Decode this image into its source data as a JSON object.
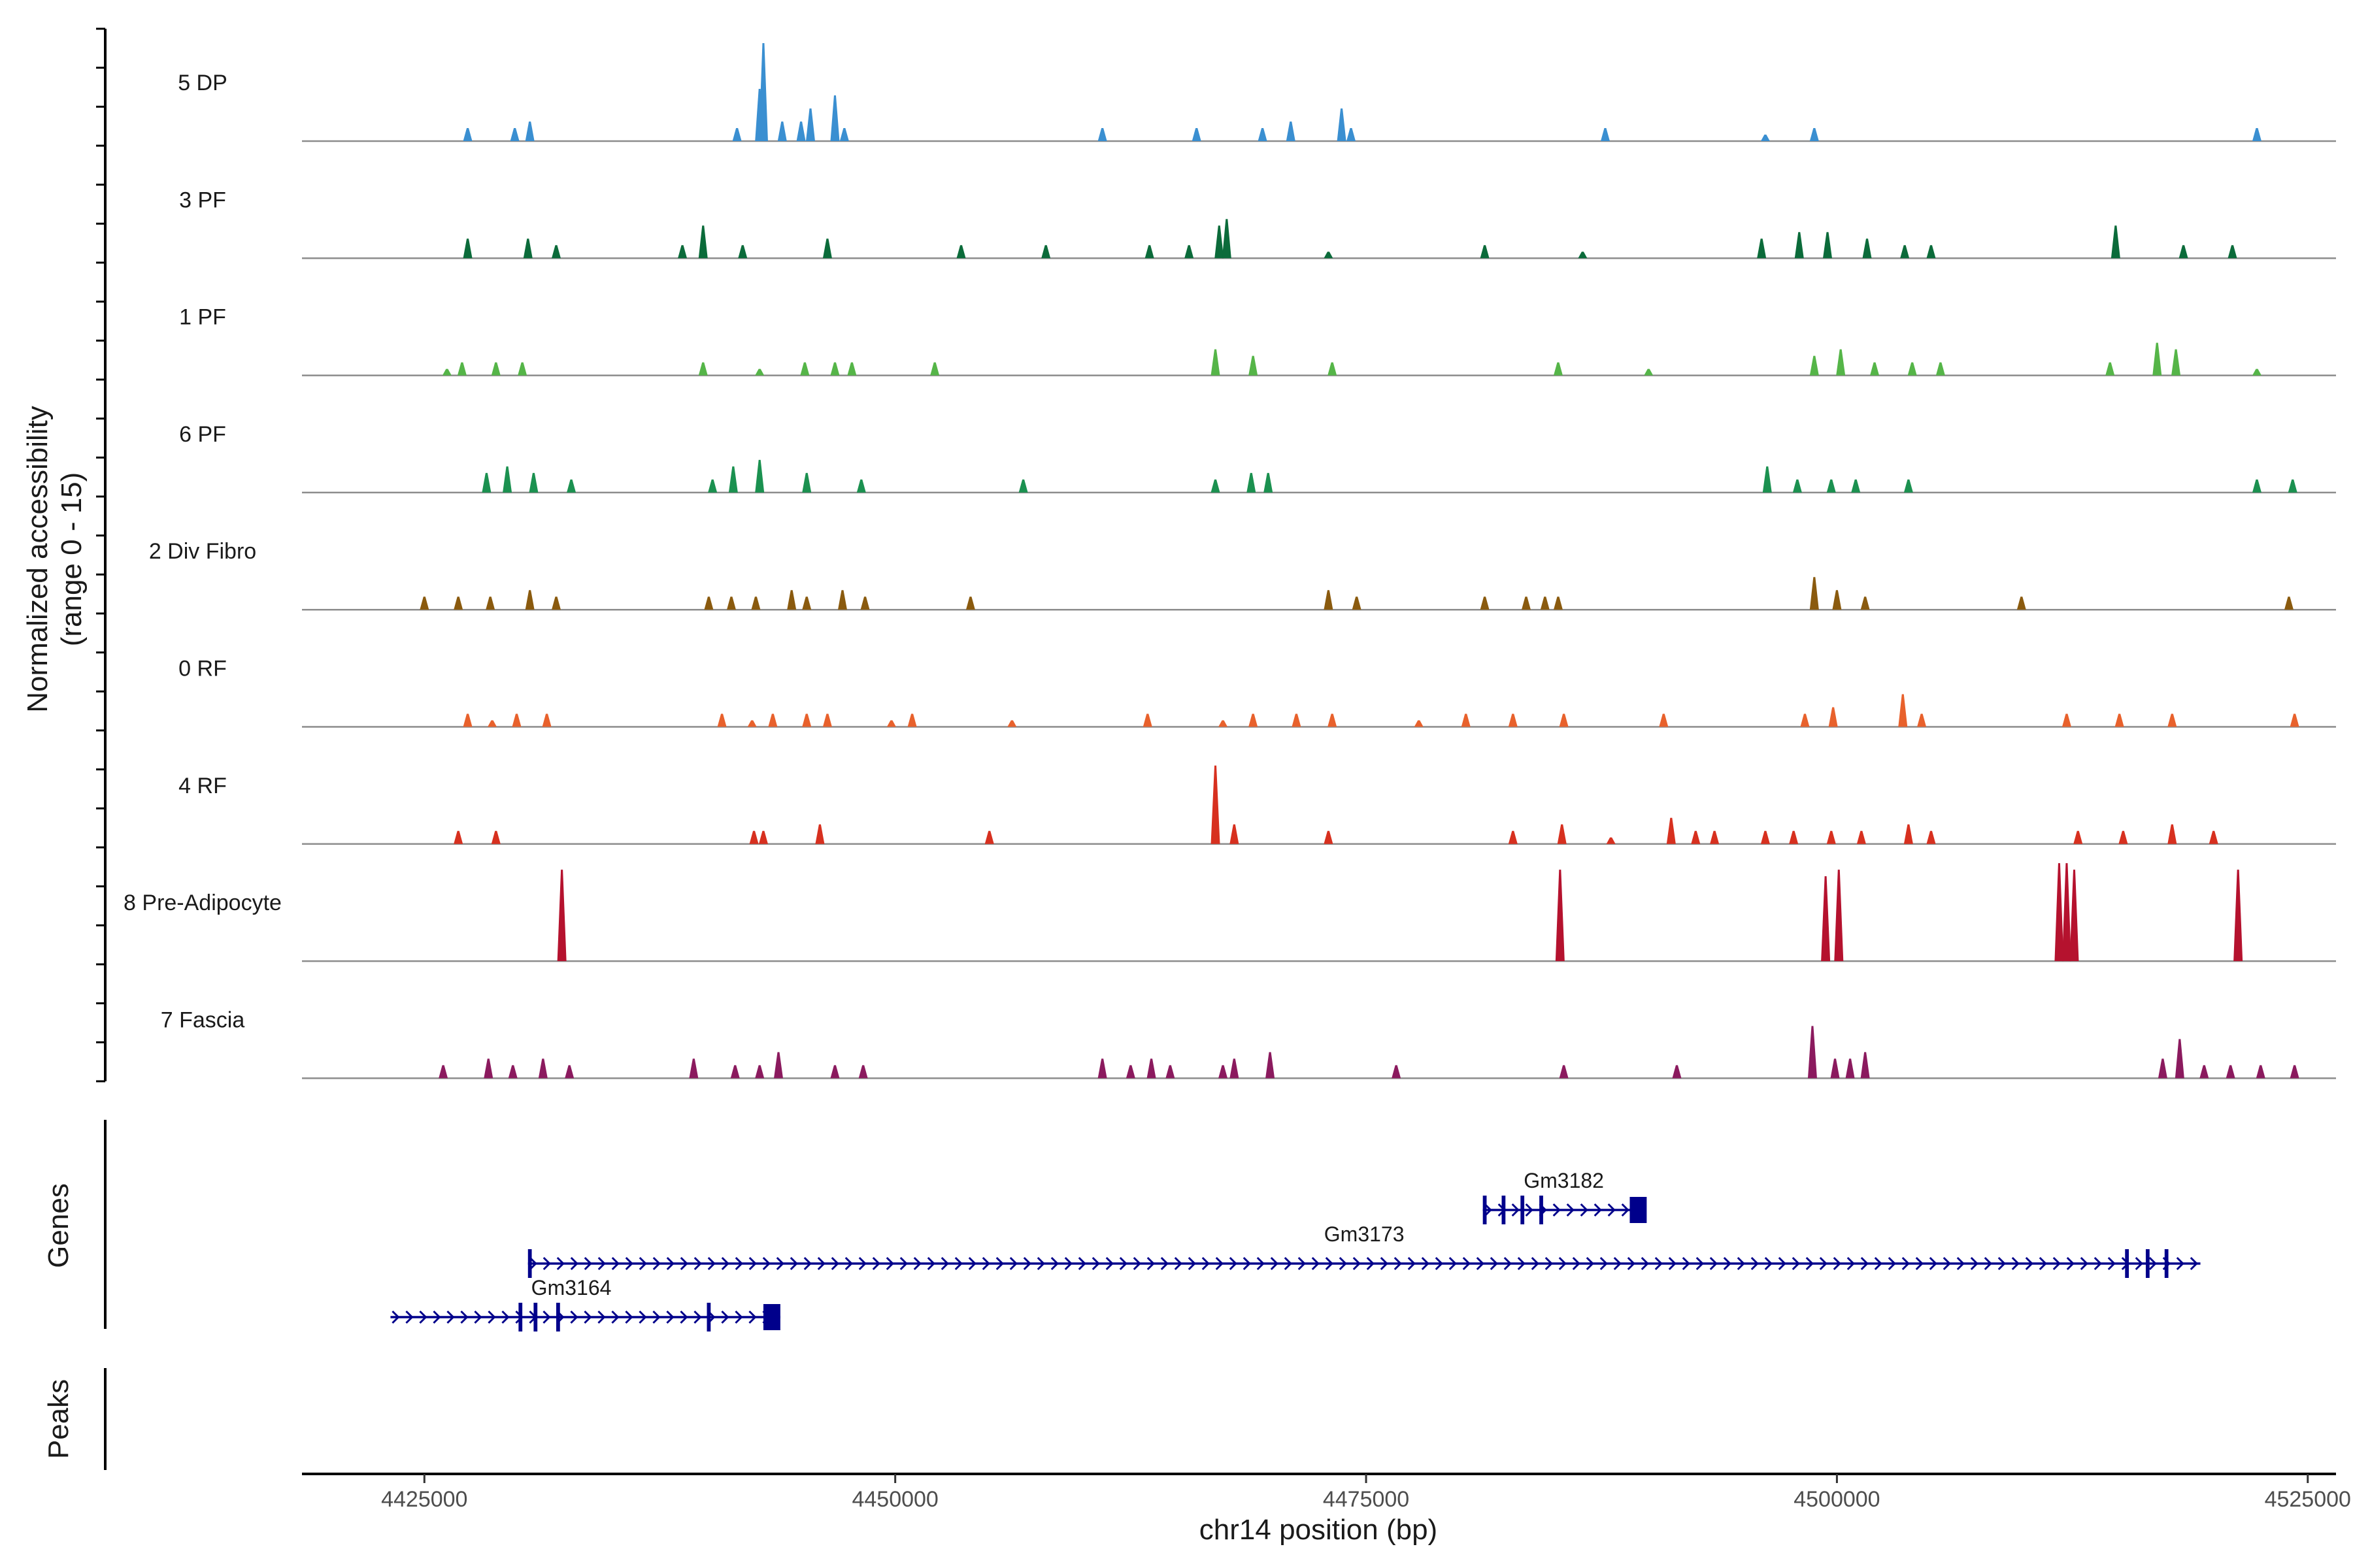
{
  "chart_data": {
    "type": "coverage-track",
    "y_axis_title": "Normalized accessibility",
    "y_axis_subtitle": "(range 0 - 15)",
    "y_range": [
      0,
      15
    ],
    "x_axis_title": "chr14 position (bp)",
    "x_range": [
      4418500,
      4526500
    ],
    "x_ticks": [
      4425000,
      4450000,
      4475000,
      4500000,
      4525000
    ],
    "x_tick_labels": [
      "4425000",
      "4450000",
      "4475000",
      "4500000",
      "4525000"
    ],
    "genes_panel_label": "Genes",
    "peaks_panel_label": "Peaks",
    "tracks": [
      {
        "name": "5 DP",
        "color": "#3a8fd1",
        "peaks": [
          [
            4427300,
            2
          ],
          [
            4429800,
            2
          ],
          [
            4430600,
            3
          ],
          [
            4441600,
            2
          ],
          [
            4442800,
            8
          ],
          [
            4443000,
            15
          ],
          [
            4444000,
            3
          ],
          [
            4445000,
            3
          ],
          [
            4445500,
            5
          ],
          [
            4446800,
            7
          ],
          [
            4447300,
            2
          ],
          [
            4461000,
            2
          ],
          [
            4466000,
            2
          ],
          [
            4469500,
            2
          ],
          [
            4471000,
            3
          ],
          [
            4473700,
            5
          ],
          [
            4474200,
            2
          ],
          [
            4487700,
            2
          ],
          [
            4496200,
            1
          ],
          [
            4498800,
            2
          ],
          [
            4522300,
            2
          ]
        ]
      },
      {
        "name": "3 PF",
        "color": "#0b6b3a",
        "peaks": [
          [
            4427300,
            3
          ],
          [
            4430500,
            3
          ],
          [
            4432000,
            2
          ],
          [
            4438700,
            2
          ],
          [
            4439800,
            5
          ],
          [
            4441900,
            2
          ],
          [
            4446400,
            3
          ],
          [
            4453500,
            2
          ],
          [
            4458000,
            2
          ],
          [
            4463500,
            2
          ],
          [
            4465600,
            2
          ],
          [
            4467200,
            5
          ],
          [
            4467600,
            6
          ],
          [
            4473000,
            1
          ],
          [
            4481300,
            2
          ],
          [
            4486500,
            1
          ],
          [
            4496000,
            3
          ],
          [
            4498000,
            4
          ],
          [
            4499500,
            4
          ],
          [
            4501600,
            3
          ],
          [
            4503600,
            2
          ],
          [
            4505000,
            2
          ],
          [
            4514800,
            5
          ],
          [
            4518400,
            2
          ],
          [
            4521000,
            2
          ]
        ]
      },
      {
        "name": "1 PF",
        "color": "#55b548",
        "peaks": [
          [
            4426200,
            1
          ],
          [
            4427000,
            2
          ],
          [
            4428800,
            2
          ],
          [
            4430200,
            2
          ],
          [
            4439800,
            2
          ],
          [
            4442800,
            1
          ],
          [
            4445200,
            2
          ],
          [
            4446800,
            2
          ],
          [
            4447700,
            2
          ],
          [
            4452100,
            2
          ],
          [
            4467000,
            4
          ],
          [
            4469000,
            3
          ],
          [
            4473200,
            2
          ],
          [
            4485200,
            2
          ],
          [
            4490000,
            1
          ],
          [
            4498800,
            3
          ],
          [
            4500200,
            4
          ],
          [
            4502000,
            2
          ],
          [
            4504000,
            2
          ],
          [
            4505500,
            2
          ],
          [
            4514500,
            2
          ],
          [
            4517000,
            5
          ],
          [
            4518000,
            4
          ],
          [
            4522300,
            1
          ]
        ]
      },
      {
        "name": "6 PF",
        "color": "#1b9150",
        "peaks": [
          [
            4428300,
            3
          ],
          [
            4429400,
            4
          ],
          [
            4430800,
            3
          ],
          [
            4432800,
            2
          ],
          [
            4440300,
            2
          ],
          [
            4441400,
            4
          ],
          [
            4442800,
            5
          ],
          [
            4445300,
            3
          ],
          [
            4448200,
            2
          ],
          [
            4456800,
            2
          ],
          [
            4467000,
            2
          ],
          [
            4468900,
            3
          ],
          [
            4469800,
            3
          ],
          [
            4496300,
            4
          ],
          [
            4497900,
            2
          ],
          [
            4499700,
            2
          ],
          [
            4501000,
            2
          ],
          [
            4503800,
            2
          ],
          [
            4522300,
            2
          ],
          [
            4524200,
            2
          ]
        ]
      },
      {
        "name": "2 Div Fibro",
        "color": "#8a5a0e",
        "peaks": [
          [
            4425000,
            2
          ],
          [
            4426800,
            2
          ],
          [
            4428500,
            2
          ],
          [
            4430600,
            3
          ],
          [
            4432000,
            2
          ],
          [
            4440100,
            2
          ],
          [
            4441300,
            2
          ],
          [
            4442600,
            2
          ],
          [
            4444500,
            3
          ],
          [
            4445300,
            2
          ],
          [
            4447200,
            3
          ],
          [
            4448400,
            2
          ],
          [
            4454000,
            2
          ],
          [
            4473000,
            3
          ],
          [
            4474500,
            2
          ],
          [
            4481300,
            2
          ],
          [
            4483500,
            2
          ],
          [
            4484500,
            2
          ],
          [
            4485200,
            2
          ],
          [
            4498800,
            5
          ],
          [
            4500000,
            3
          ],
          [
            4501500,
            2
          ],
          [
            4509800,
            2
          ],
          [
            4524000,
            2
          ]
        ]
      },
      {
        "name": "0 RF",
        "color": "#e8612c",
        "peaks": [
          [
            4427300,
            2
          ],
          [
            4428600,
            1
          ],
          [
            4429900,
            2
          ],
          [
            4431500,
            2
          ],
          [
            4440800,
            2
          ],
          [
            4442400,
            1
          ],
          [
            4443500,
            2
          ],
          [
            4445300,
            2
          ],
          [
            4446400,
            2
          ],
          [
            4449800,
            1
          ],
          [
            4450900,
            2
          ],
          [
            4456200,
            1
          ],
          [
            4463400,
            2
          ],
          [
            4467400,
            1
          ],
          [
            4469000,
            2
          ],
          [
            4471300,
            2
          ],
          [
            4473200,
            2
          ],
          [
            4477800,
            1
          ],
          [
            4480300,
            2
          ],
          [
            4482800,
            2
          ],
          [
            4485500,
            2
          ],
          [
            4490800,
            2
          ],
          [
            4498300,
            2
          ],
          [
            4499800,
            3
          ],
          [
            4503500,
            5
          ],
          [
            4504500,
            2
          ],
          [
            4512200,
            2
          ],
          [
            4515000,
            2
          ],
          [
            4517800,
            2
          ],
          [
            4524300,
            2
          ]
        ]
      },
      {
        "name": "4 RF",
        "color": "#d7301f",
        "peaks": [
          [
            4426800,
            2
          ],
          [
            4428800,
            2
          ],
          [
            4442500,
            2
          ],
          [
            4443000,
            2
          ],
          [
            4446000,
            3
          ],
          [
            4455000,
            2
          ],
          [
            4467000,
            12
          ],
          [
            4468000,
            3
          ],
          [
            4473000,
            2
          ],
          [
            4482800,
            2
          ],
          [
            4485400,
            3
          ],
          [
            4488000,
            1
          ],
          [
            4491200,
            4
          ],
          [
            4492500,
            2
          ],
          [
            4493500,
            2
          ],
          [
            4496200,
            2
          ],
          [
            4497700,
            2
          ],
          [
            4499700,
            2
          ],
          [
            4501300,
            2
          ],
          [
            4503800,
            3
          ],
          [
            4505000,
            2
          ],
          [
            4512800,
            2
          ],
          [
            4515200,
            2
          ],
          [
            4517800,
            3
          ],
          [
            4520000,
            2
          ]
        ]
      },
      {
        "name": "8 Pre-Adipocyte",
        "color": "#b5122e",
        "peaks": [
          [
            4432300,
            14
          ],
          [
            4485300,
            14
          ],
          [
            4499400,
            13
          ],
          [
            4500100,
            14
          ],
          [
            4511800,
            15
          ],
          [
            4512200,
            15
          ],
          [
            4512600,
            14
          ],
          [
            4521300,
            14
          ]
        ]
      },
      {
        "name": "7 Fascia",
        "color": "#8b1a5e",
        "peaks": [
          [
            4426000,
            2
          ],
          [
            4428400,
            3
          ],
          [
            4429700,
            2
          ],
          [
            4431300,
            3
          ],
          [
            4432700,
            2
          ],
          [
            4439300,
            3
          ],
          [
            4441500,
            2
          ],
          [
            4442800,
            2
          ],
          [
            4443800,
            4
          ],
          [
            4446800,
            2
          ],
          [
            4448300,
            2
          ],
          [
            4461000,
            3
          ],
          [
            4462500,
            2
          ],
          [
            4463600,
            3
          ],
          [
            4464600,
            2
          ],
          [
            4467400,
            2
          ],
          [
            4468000,
            3
          ],
          [
            4469900,
            4
          ],
          [
            4476600,
            2
          ],
          [
            4485500,
            2
          ],
          [
            4491500,
            2
          ],
          [
            4498700,
            8
          ],
          [
            4499900,
            3
          ],
          [
            4500700,
            3
          ],
          [
            4501500,
            4
          ],
          [
            4517300,
            3
          ],
          [
            4518200,
            6
          ],
          [
            4519500,
            2
          ],
          [
            4520900,
            2
          ],
          [
            4522500,
            2
          ],
          [
            4524300,
            2
          ]
        ]
      }
    ],
    "genes": [
      {
        "name": "Gm3182",
        "start": 4481200,
        "end": 4489800,
        "strand": "+",
        "exons": [
          [
            4481200,
            4481400
          ],
          [
            4482200,
            4482400
          ],
          [
            4483200,
            4483400
          ],
          [
            4484200,
            4484400
          ],
          [
            4489000,
            4489900
          ]
        ]
      },
      {
        "name": "Gm3173",
        "start": 4430500,
        "end": 4519300,
        "strand": "+",
        "exons": [
          [
            4430500,
            4430700
          ],
          [
            4515300,
            4515500
          ],
          [
            4516400,
            4516600
          ],
          [
            4517400,
            4517600
          ]
        ]
      },
      {
        "name": "Gm3164",
        "start": 4423200,
        "end": 4443900,
        "strand": "+",
        "exons": [
          [
            4430000,
            4430200
          ],
          [
            4430800,
            4431000
          ],
          [
            4432000,
            4432200
          ],
          [
            4440000,
            4440200
          ],
          [
            4443000,
            4443900
          ]
        ]
      }
    ]
  }
}
